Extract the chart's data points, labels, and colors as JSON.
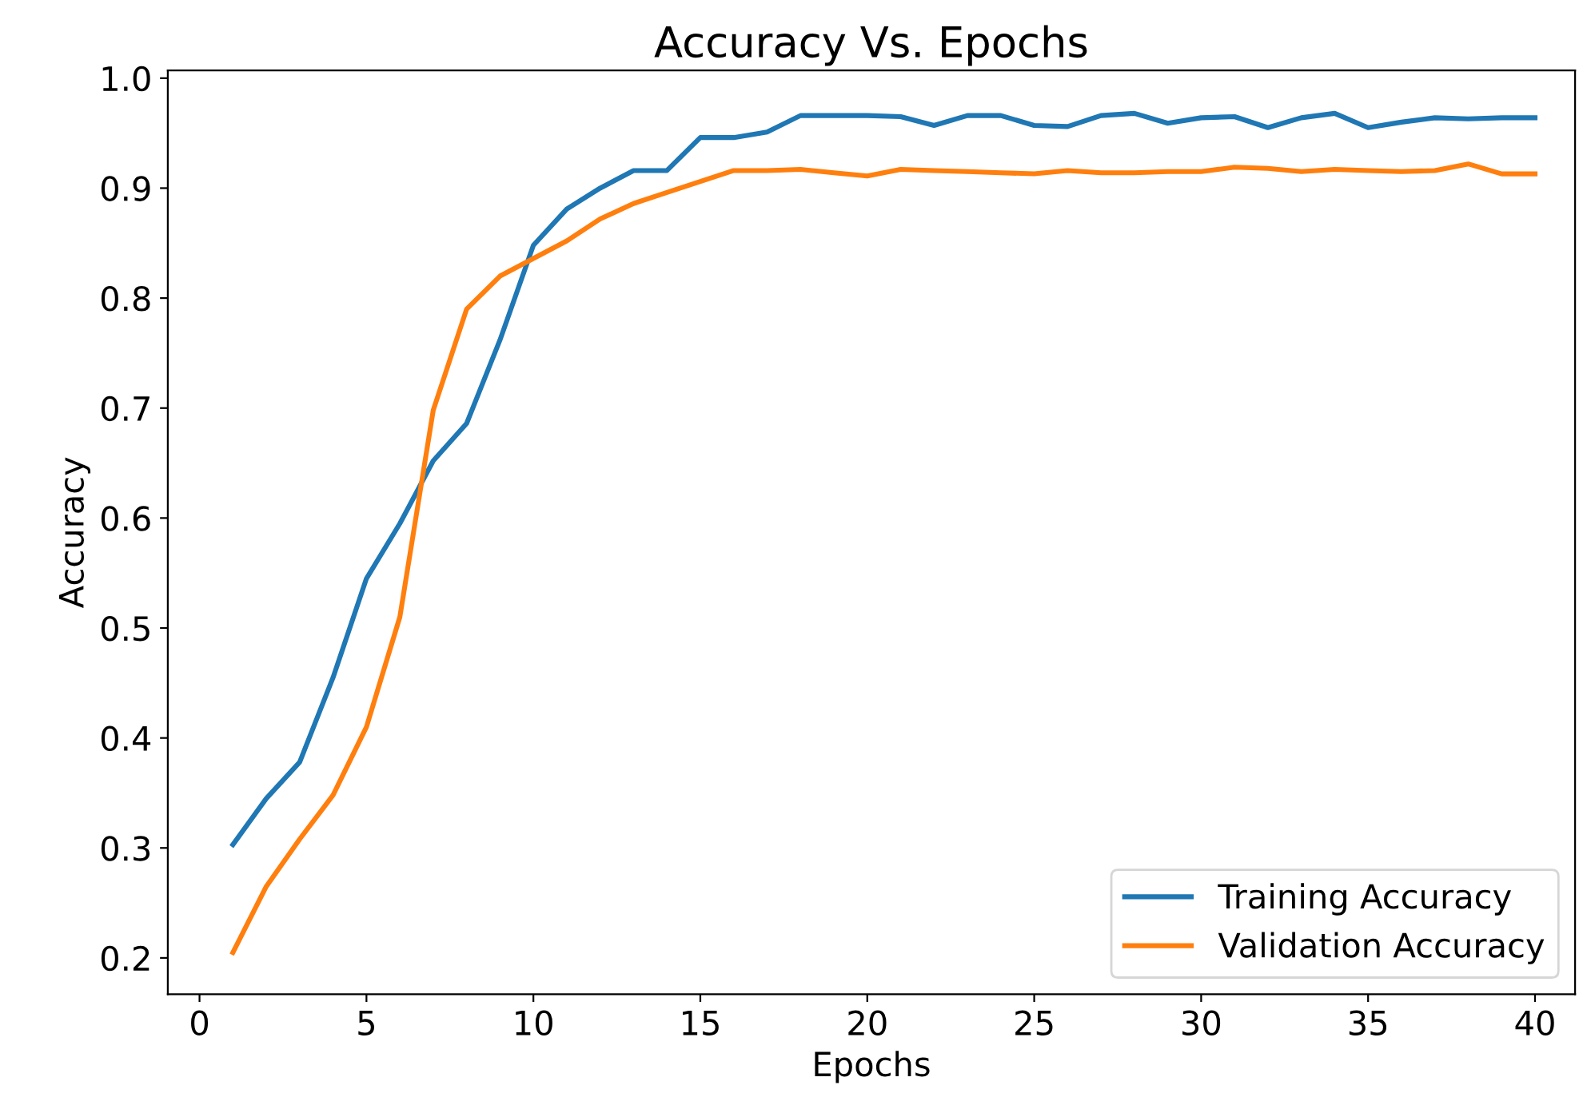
{
  "chart_data": {
    "type": "line",
    "title": "Accuracy Vs. Epochs",
    "xlabel": "Epochs",
    "ylabel": "Accuracy",
    "x": [
      1,
      2,
      3,
      4,
      5,
      6,
      7,
      8,
      9,
      10,
      11,
      12,
      13,
      14,
      15,
      16,
      17,
      18,
      19,
      20,
      21,
      22,
      23,
      24,
      25,
      26,
      27,
      28,
      29,
      30,
      31,
      32,
      33,
      34,
      35,
      36,
      37,
      38,
      39,
      40
    ],
    "series": [
      {
        "name": "Training Accuracy",
        "color": "#1f77b4",
        "values": [
          0.303,
          0.345,
          0.378,
          0.455,
          0.545,
          0.595,
          0.652,
          0.686,
          0.762,
          0.848,
          0.881,
          0.9,
          0.916,
          0.916,
          0.946,
          0.946,
          0.951,
          0.966,
          0.966,
          0.966,
          0.965,
          0.957,
          0.966,
          0.966,
          0.957,
          0.956,
          0.966,
          0.968,
          0.959,
          0.964,
          0.965,
          0.955,
          0.964,
          0.968,
          0.955,
          0.96,
          0.964,
          0.963,
          0.964,
          0.964
        ]
      },
      {
        "name": "Validation Accuracy",
        "color": "#ff7f0e",
        "values": [
          0.205,
          0.265,
          0.308,
          0.348,
          0.41,
          0.51,
          0.698,
          0.79,
          0.82,
          0.836,
          0.852,
          0.872,
          0.886,
          0.896,
          0.906,
          0.916,
          0.916,
          0.917,
          0.914,
          0.911,
          0.917,
          0.916,
          0.915,
          0.914,
          0.913,
          0.916,
          0.914,
          0.914,
          0.915,
          0.915,
          0.919,
          0.918,
          0.915,
          0.917,
          0.916,
          0.915,
          0.916,
          0.922,
          0.913,
          0.913
        ]
      }
    ],
    "xlim": [
      -0.95,
      41.2
    ],
    "ylim": [
      0.167,
      1.007
    ],
    "xticks": [
      0,
      5,
      10,
      15,
      20,
      25,
      30,
      35,
      40
    ],
    "yticks": [
      0.2,
      0.3,
      0.4,
      0.5,
      0.6,
      0.7,
      0.8,
      0.9,
      {
        "value": 1,
        "label": "1.0"
      }
    ],
    "legend": "lower right",
    "grid": false
  }
}
